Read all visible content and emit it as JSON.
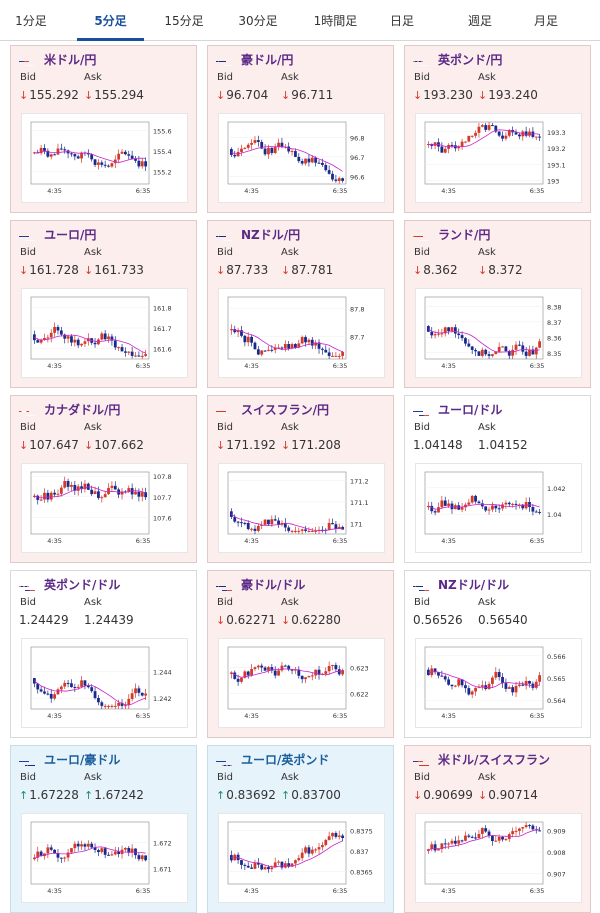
{
  "tabs": [
    {
      "label": "1分足",
      "active": false
    },
    {
      "label": "5分足",
      "active": true
    },
    {
      "label": "15分足",
      "active": false
    },
    {
      "label": "30分足",
      "active": false
    },
    {
      "label": "1時間足",
      "active": false
    },
    {
      "label": "日足",
      "active": false
    },
    {
      "label": "週足",
      "active": false
    },
    {
      "label": "月足",
      "active": false
    }
  ],
  "labels": {
    "bid": "Bid",
    "ask": "Ask"
  },
  "colors": {
    "up": "#d23a2c",
    "down": "#1a2a8c",
    "ma": "#cc22cc",
    "title": "#5b2a86",
    "title_blue": "#1a5e9c",
    "arrow_down": "#d23a2c",
    "arrow_up": "#1a8c6b"
  },
  "cards": [
    {
      "pair": "米ドル/円",
      "flag": "us",
      "style": "pink",
      "dir": "down",
      "bid": "155.292",
      "ask": "155.294",
      "yticks": [
        "155.6",
        "155.4",
        "155.2"
      ],
      "ylim": [
        155.08,
        155.68
      ],
      "xticks": [
        "4:35",
        "6:35"
      ]
    },
    {
      "pair": "豪ドル/円",
      "flag": "au",
      "style": "pink",
      "dir": "down",
      "bid": "96.704",
      "ask": "96.711",
      "yticks": [
        "96.8",
        "96.7",
        "96.6"
      ],
      "ylim": [
        96.56,
        96.88
      ],
      "xticks": [
        "4:35",
        "6:35"
      ]
    },
    {
      "pair": "英ポンド/円",
      "flag": "gb",
      "style": "pink",
      "dir": "down",
      "bid": "193.230",
      "ask": "193.240",
      "yticks": [
        "193.3",
        "193.2",
        "193.1",
        "193"
      ],
      "ylim": [
        192.98,
        193.36
      ],
      "xticks": [
        "4:35",
        "6:35"
      ]
    },
    {
      "pair": "ユーロ/円",
      "flag": "eu",
      "style": "pink",
      "dir": "down",
      "bid": "161.728",
      "ask": "161.733",
      "yticks": [
        "161.8",
        "161.7",
        "161.6"
      ],
      "ylim": [
        161.55,
        161.85
      ],
      "xticks": [
        "4:35",
        "6:35"
      ]
    },
    {
      "pair": "NZドル/円",
      "flag": "nz",
      "style": "pink",
      "dir": "down",
      "bid": "87.733",
      "ask": "87.781",
      "yticks": [
        "87.8",
        "87.7"
      ],
      "ylim": [
        87.62,
        87.84
      ],
      "xticks": [
        "4:35",
        "6:35"
      ]
    },
    {
      "pair": "ランド/円",
      "flag": "za",
      "style": "pink",
      "dir": "down",
      "bid": "8.362",
      "ask": "8.372",
      "yticks": [
        "8.38",
        "8.37",
        "8.36",
        "8.35"
      ],
      "ylim": [
        8.346,
        8.386
      ],
      "xticks": [
        "4:35",
        "6:35"
      ]
    },
    {
      "pair": "カナダドル/円",
      "flag": "ca",
      "style": "pink",
      "dir": "down",
      "bid": "107.647",
      "ask": "107.662",
      "yticks": [
        "107.8",
        "107.7",
        "107.6"
      ],
      "ylim": [
        107.52,
        107.82
      ],
      "xticks": [
        "4:35",
        "6:35"
      ]
    },
    {
      "pair": "スイスフラン/円",
      "flag": "ch",
      "style": "pink",
      "dir": "down",
      "bid": "171.192",
      "ask": "171.208",
      "yticks": [
        "171.2",
        "171.1",
        "171"
      ],
      "ylim": [
        170.95,
        171.24
      ],
      "xticks": [
        "4:35",
        "6:35"
      ]
    },
    {
      "pair": "ユーロ/ドル",
      "flag": "euus",
      "style": "white",
      "dir": "none",
      "bid": "1.04148",
      "ask": "1.04152",
      "yticks": [
        "1.042",
        "1.04"
      ],
      "ylim": [
        1.0385,
        1.0432
      ],
      "xticks": [
        "4:35",
        "6:35"
      ]
    },
    {
      "pair": "英ポンド/ドル",
      "flag": "gbus",
      "style": "white",
      "dir": "none",
      "bid": "1.24429",
      "ask": "1.24439",
      "yticks": [
        "1.244",
        "1.242"
      ],
      "ylim": [
        1.2412,
        1.2458
      ],
      "xticks": [
        "4:35",
        "6:35"
      ]
    },
    {
      "pair": "豪ドル/ドル",
      "flag": "auus",
      "style": "pink",
      "dir": "down",
      "bid": "0.62271",
      "ask": "0.62280",
      "yticks": [
        "0.623",
        "0.622"
      ],
      "ylim": [
        0.6214,
        0.6238
      ],
      "xticks": [
        "4:35",
        "6:35"
      ]
    },
    {
      "pair": "NZドル/ドル",
      "flag": "nzus",
      "style": "white",
      "dir": "none",
      "bid": "0.56526",
      "ask": "0.56540",
      "yticks": [
        "0.566",
        "0.565",
        "0.564"
      ],
      "ylim": [
        0.5636,
        0.5664
      ],
      "xticks": [
        "4:35",
        "6:35"
      ]
    },
    {
      "pair": "ユーロ/豪ドル",
      "flag": "euau",
      "style": "blue",
      "dir": "up",
      "bid": "1.67228",
      "ask": "1.67242",
      "yticks": [
        "1.672",
        "1.671"
      ],
      "ylim": [
        1.6704,
        1.6728
      ],
      "xticks": [
        "4:35",
        "6:35"
      ]
    },
    {
      "pair": "ユーロ/英ポンド",
      "flag": "eugb",
      "style": "blue",
      "dir": "up",
      "bid": "0.83692",
      "ask": "0.83700",
      "yticks": [
        "0.8375",
        "0.837",
        "0.8365"
      ],
      "ylim": [
        0.8362,
        0.8377
      ],
      "xticks": [
        "4:35",
        "6:35"
      ]
    },
    {
      "pair": "米ドル/スイスフラン",
      "flag": "usch",
      "style": "pink",
      "dir": "down",
      "bid": "0.90699",
      "ask": "0.90714",
      "yticks": [
        "0.909",
        "0.908",
        "0.907"
      ],
      "ylim": [
        0.9065,
        0.9094
      ],
      "xticks": [
        "4:35",
        "6:35"
      ]
    }
  ]
}
